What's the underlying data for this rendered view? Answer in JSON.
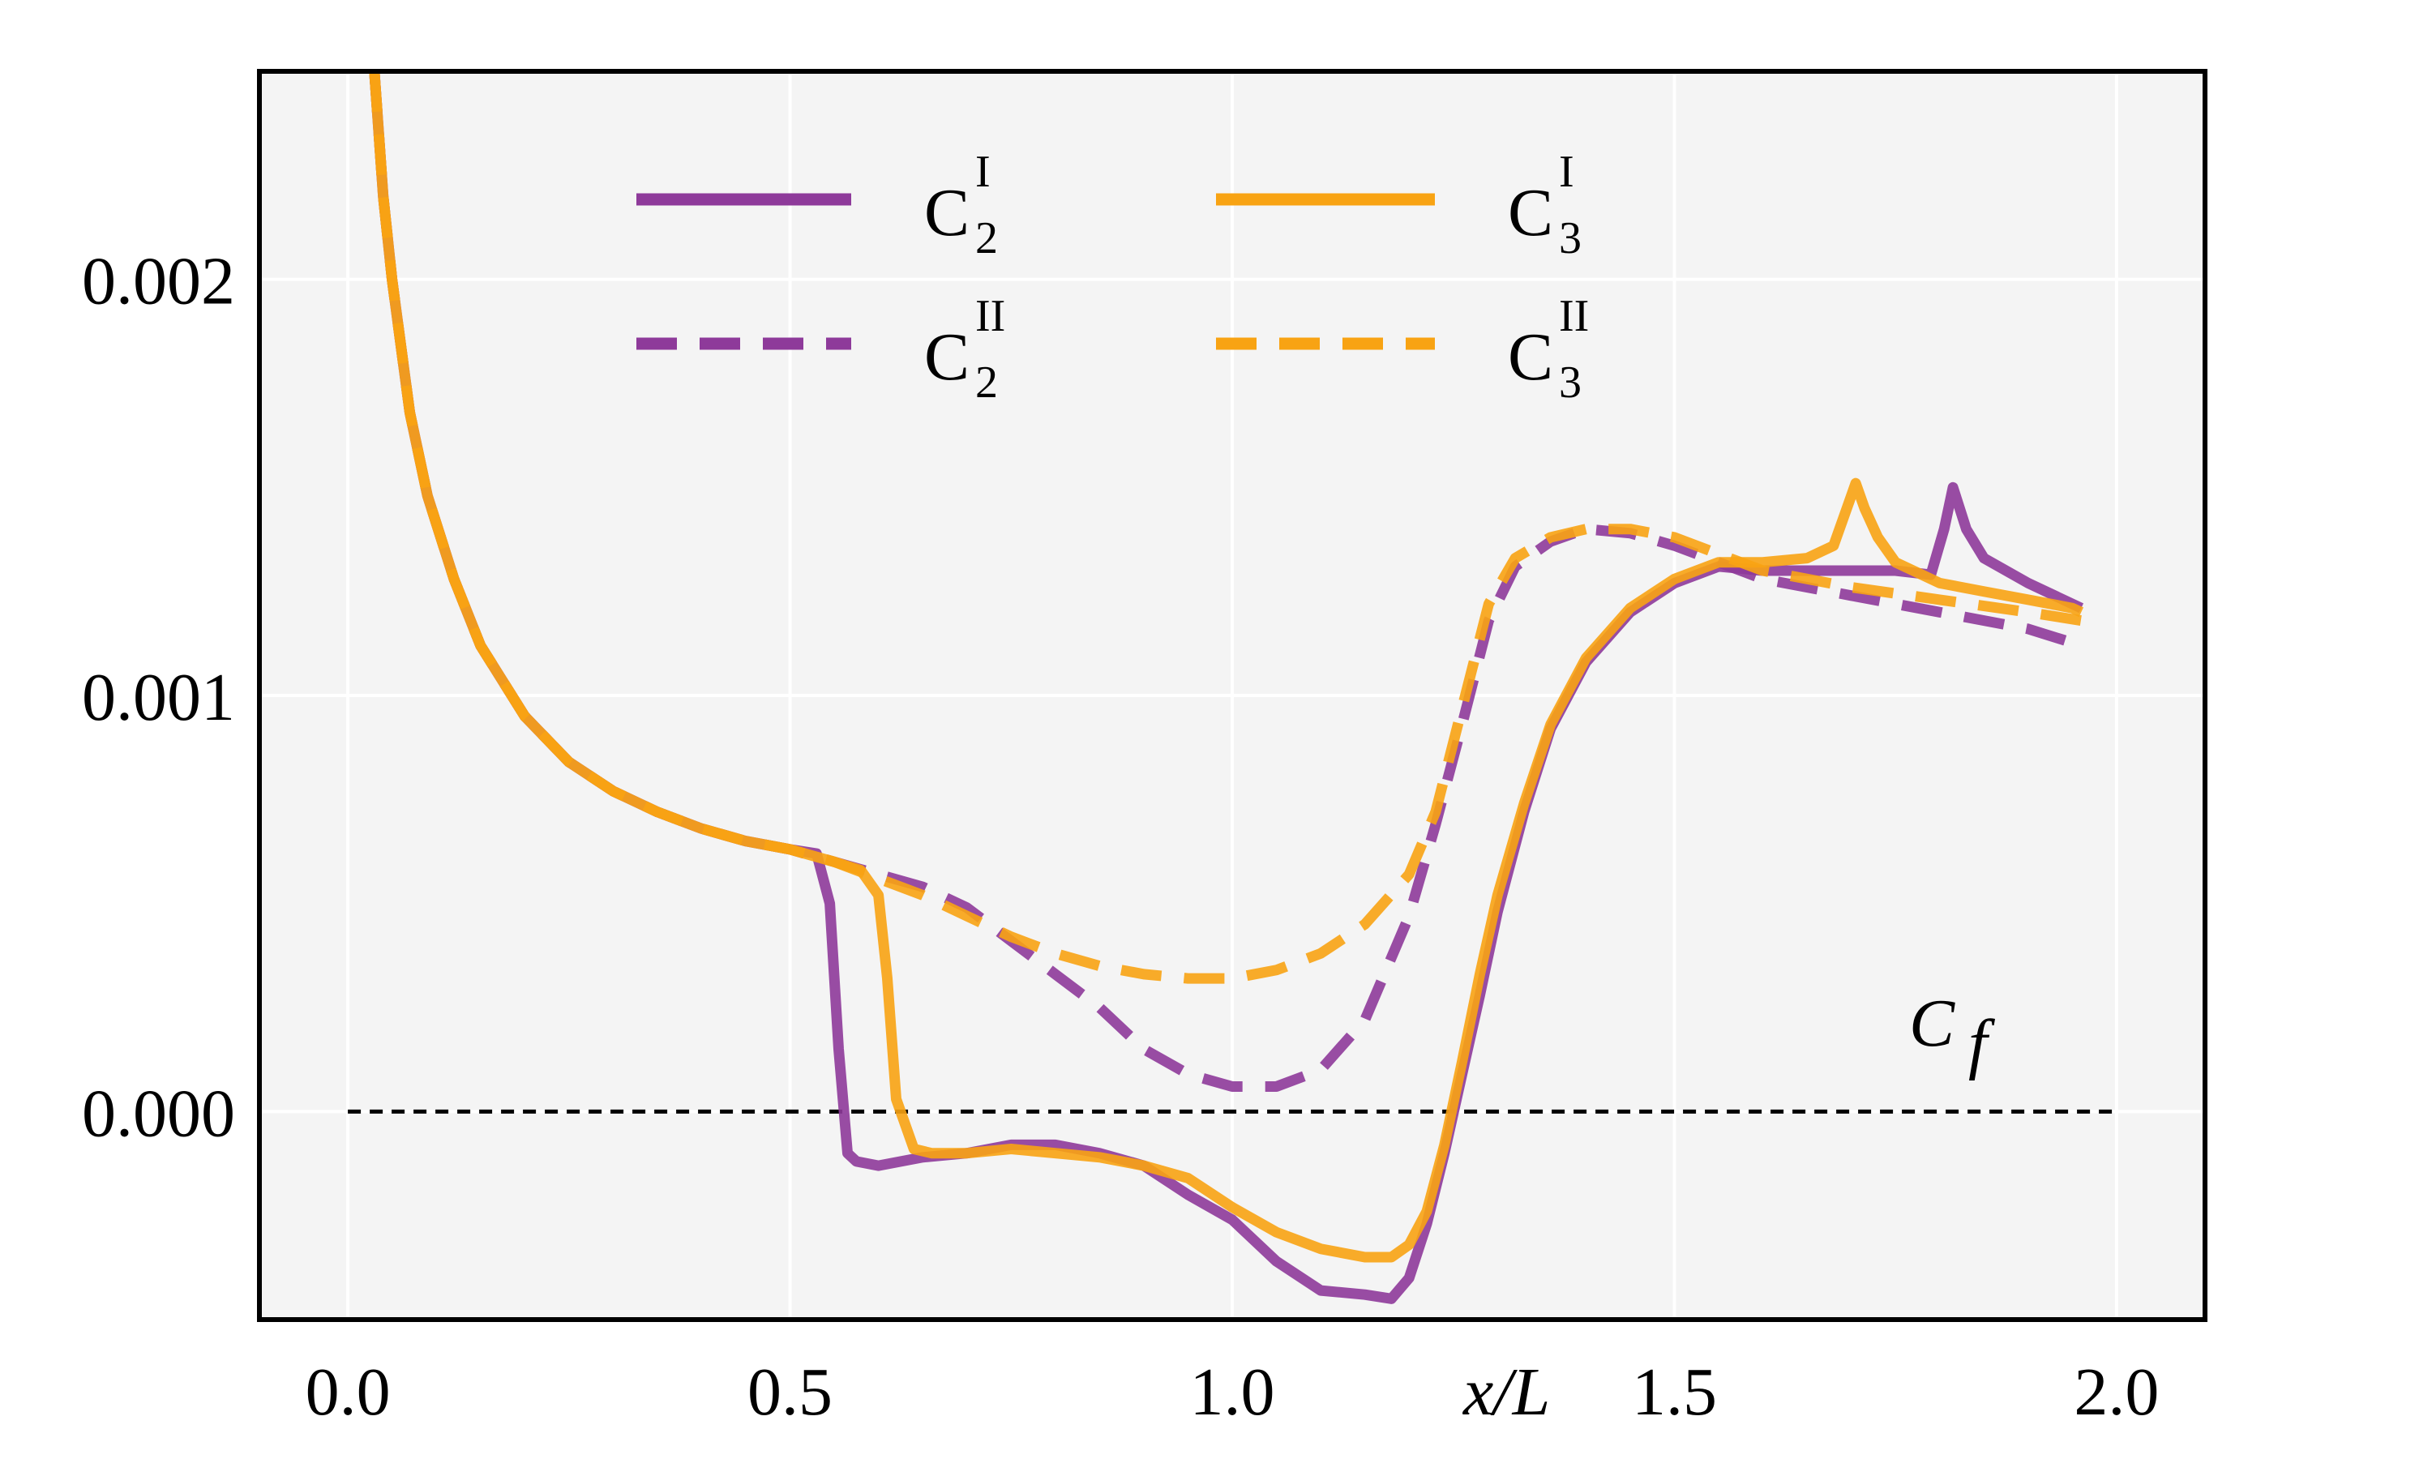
{
  "chart_data": {
    "type": "line",
    "title": "",
    "xlabel": "x/L",
    "ylabel": "",
    "annotation": {
      "base": "C",
      "sub": "f"
    },
    "xlim": [
      -0.1,
      2.1
    ],
    "ylim": [
      -0.0005,
      0.0025
    ],
    "grid": true,
    "xticks": [
      0.0,
      0.5,
      1.0,
      1.5,
      2.0
    ],
    "xtick_labels": [
      "0.0",
      "0.5",
      "1.0",
      "1.5",
      "2.0"
    ],
    "yticks": [
      0.0,
      0.001,
      0.002
    ],
    "ytick_labels": [
      "0.000",
      "0.001",
      "0.002"
    ],
    "reference_line": {
      "y": 0.0,
      "x_range": [
        0.0,
        2.0
      ],
      "color": "#000000",
      "style": "dashed"
    },
    "colors": {
      "purple": "#8E3A9A",
      "orange": "#F8A313",
      "background": "#F4F4F4"
    },
    "legend": {
      "placement": "top-center",
      "columns": 2
    },
    "series": [
      {
        "name": "C2 I",
        "label_base": "C",
        "label_sub": "2",
        "label_sup": "I",
        "color": "#8E3A9A",
        "dash": "solid",
        "x": [
          0.03,
          0.04,
          0.05,
          0.07,
          0.09,
          0.12,
          0.15,
          0.2,
          0.25,
          0.3,
          0.35,
          0.4,
          0.45,
          0.5,
          0.53,
          0.545,
          0.555,
          0.565,
          0.575,
          0.6,
          0.65,
          0.7,
          0.75,
          0.8,
          0.85,
          0.9,
          0.95,
          1.0,
          1.05,
          1.1,
          1.15,
          1.18,
          1.2,
          1.22,
          1.24,
          1.26,
          1.28,
          1.3,
          1.33,
          1.36,
          1.4,
          1.45,
          1.5,
          1.55,
          1.6,
          1.65,
          1.7,
          1.75,
          1.79,
          1.805,
          1.815,
          1.83,
          1.85,
          1.9,
          1.95,
          1.96
        ],
        "y": [
          0.0025,
          0.0022,
          0.002,
          0.00168,
          0.00148,
          0.00128,
          0.00112,
          0.00095,
          0.00084,
          0.00077,
          0.00072,
          0.00068,
          0.00065,
          0.00063,
          0.00062,
          0.0005,
          0.00015,
          -0.0001,
          -0.00012,
          -0.00013,
          -0.00011,
          -0.0001,
          -8e-05,
          -8e-05,
          -0.0001,
          -0.00013,
          -0.0002,
          -0.00026,
          -0.00036,
          -0.00043,
          -0.00044,
          -0.00045,
          -0.0004,
          -0.00027,
          -0.0001,
          9e-05,
          0.00028,
          0.00048,
          0.00072,
          0.00092,
          0.00108,
          0.0012,
          0.00127,
          0.00131,
          0.0013,
          0.0013,
          0.0013,
          0.0013,
          0.00129,
          0.0014,
          0.0015,
          0.0014,
          0.00133,
          0.00127,
          0.00122,
          0.00121
        ]
      },
      {
        "name": "C2 II",
        "label_base": "C",
        "label_sub": "2",
        "label_sup": "II",
        "color": "#8E3A9A",
        "dash": "dashed",
        "x": [
          0.03,
          0.04,
          0.05,
          0.07,
          0.09,
          0.12,
          0.15,
          0.2,
          0.25,
          0.3,
          0.35,
          0.4,
          0.45,
          0.5,
          0.55,
          0.6,
          0.65,
          0.7,
          0.75,
          0.8,
          0.85,
          0.9,
          0.95,
          1.0,
          1.05,
          1.1,
          1.15,
          1.2,
          1.23,
          1.26,
          1.29,
          1.32,
          1.36,
          1.4,
          1.45,
          1.5,
          1.55,
          1.6,
          1.7,
          1.8,
          1.9,
          1.96
        ],
        "y": [
          0.0025,
          0.0022,
          0.002,
          0.00168,
          0.00148,
          0.00128,
          0.00112,
          0.00095,
          0.00084,
          0.00077,
          0.00072,
          0.00068,
          0.00065,
          0.00063,
          0.0006,
          0.00057,
          0.00054,
          0.00049,
          0.00041,
          0.00033,
          0.00025,
          0.00015,
          9e-05,
          6e-05,
          6e-05,
          0.0001,
          0.00022,
          0.00047,
          0.00069,
          0.00093,
          0.00118,
          0.00131,
          0.00137,
          0.0014,
          0.00139,
          0.00136,
          0.00132,
          0.00128,
          0.00124,
          0.0012,
          0.00116,
          0.00112
        ]
      },
      {
        "name": "C3 I",
        "label_base": "C",
        "label_sub": "3",
        "label_sup": "I",
        "color": "#F8A313",
        "dash": "solid",
        "x": [
          0.03,
          0.04,
          0.05,
          0.07,
          0.09,
          0.12,
          0.15,
          0.2,
          0.25,
          0.3,
          0.35,
          0.4,
          0.45,
          0.5,
          0.55,
          0.58,
          0.6,
          0.61,
          0.62,
          0.64,
          0.66,
          0.7,
          0.75,
          0.8,
          0.85,
          0.9,
          0.95,
          1.0,
          1.05,
          1.1,
          1.15,
          1.18,
          1.2,
          1.22,
          1.24,
          1.26,
          1.28,
          1.3,
          1.33,
          1.36,
          1.4,
          1.45,
          1.5,
          1.55,
          1.6,
          1.65,
          1.68,
          1.695,
          1.705,
          1.715,
          1.73,
          1.75,
          1.8,
          1.85,
          1.9,
          1.95,
          1.96
        ],
        "y": [
          0.0025,
          0.0022,
          0.002,
          0.00168,
          0.00148,
          0.00128,
          0.00112,
          0.00095,
          0.00084,
          0.00077,
          0.00072,
          0.00068,
          0.00065,
          0.00063,
          0.0006,
          0.00058,
          0.00052,
          0.00032,
          3e-05,
          -9e-05,
          -0.0001,
          -0.0001,
          -9e-05,
          -0.0001,
          -0.00011,
          -0.00013,
          -0.00016,
          -0.00023,
          -0.00029,
          -0.00033,
          -0.00035,
          -0.00035,
          -0.00032,
          -0.00024,
          -8e-05,
          0.00012,
          0.00033,
          0.00052,
          0.00074,
          0.00093,
          0.00109,
          0.00121,
          0.00128,
          0.00132,
          0.00132,
          0.00133,
          0.00136,
          0.00145,
          0.00151,
          0.00145,
          0.00138,
          0.00132,
          0.00127,
          0.00125,
          0.00123,
          0.00121,
          0.0012
        ]
      },
      {
        "name": "C3 II",
        "label_base": "C",
        "label_sub": "3",
        "label_sup": "II",
        "color": "#F8A313",
        "dash": "dashed",
        "x": [
          0.03,
          0.04,
          0.05,
          0.07,
          0.09,
          0.12,
          0.15,
          0.2,
          0.25,
          0.3,
          0.35,
          0.4,
          0.45,
          0.5,
          0.55,
          0.6,
          0.65,
          0.7,
          0.75,
          0.8,
          0.85,
          0.9,
          0.95,
          1.0,
          1.05,
          1.1,
          1.15,
          1.2,
          1.23,
          1.26,
          1.29,
          1.32,
          1.36,
          1.4,
          1.45,
          1.5,
          1.55,
          1.6,
          1.7,
          1.8,
          1.9,
          1.96
        ],
        "y": [
          0.0025,
          0.0022,
          0.002,
          0.00168,
          0.00148,
          0.00128,
          0.00112,
          0.00095,
          0.00084,
          0.00077,
          0.00072,
          0.00068,
          0.00065,
          0.00063,
          0.0006,
          0.00056,
          0.00052,
          0.00047,
          0.00042,
          0.00038,
          0.00035,
          0.00033,
          0.00032,
          0.00032,
          0.00034,
          0.00038,
          0.00045,
          0.00057,
          0.00072,
          0.00097,
          0.00122,
          0.00133,
          0.00138,
          0.0014,
          0.0014,
          0.00138,
          0.00134,
          0.0013,
          0.00126,
          0.00123,
          0.0012,
          0.00118
        ]
      }
    ]
  }
}
